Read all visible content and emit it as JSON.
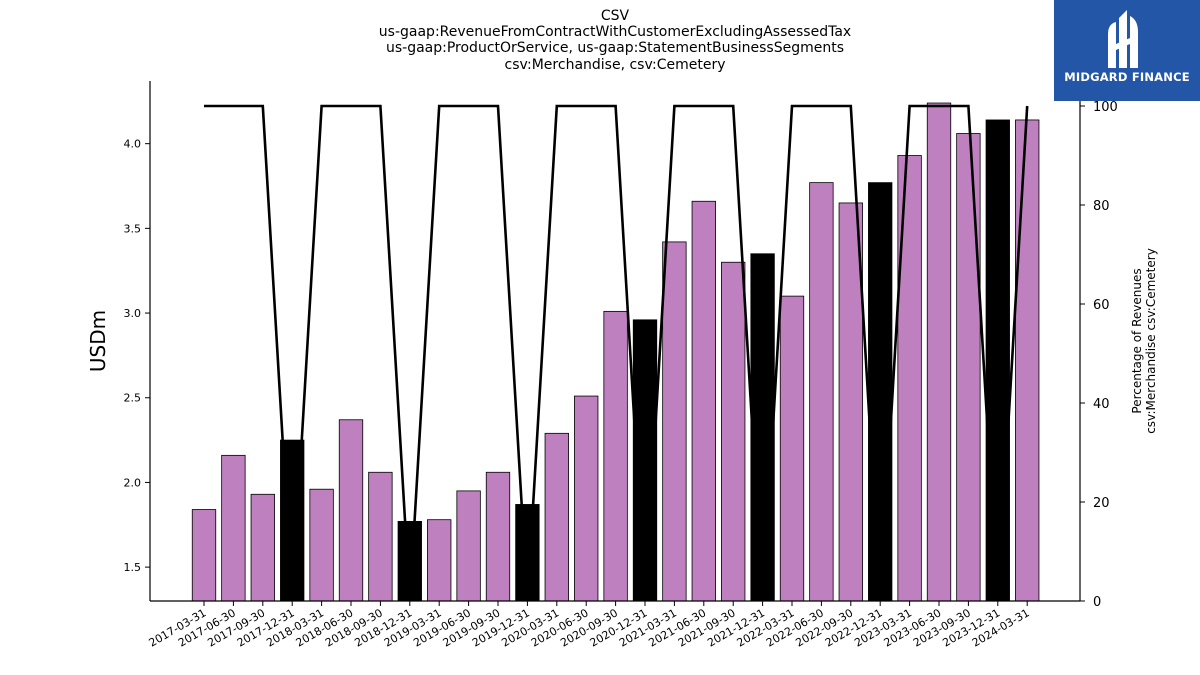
{
  "chart_data": {
    "type": "bar",
    "title_lines": [
      "CSV",
      "us-gaap:RevenueFromContractWithCustomerExcludingAssessedTax",
      "us-gaap:ProductOrService, us-gaap:StatementBusinessSegments",
      "csv:Merchandise, csv:Cemetery"
    ],
    "ylabel": "USDm",
    "ylabel_right": [
      "Percentage of Revenues",
      "csv:Merchandise csv:Cemetery"
    ],
    "ylim": [
      1.3,
      4.37
    ],
    "y_ticks": [
      1.5,
      2.0,
      2.5,
      3.0,
      3.5,
      4.0
    ],
    "y2lim": [
      0,
      100
    ],
    "y2_ticks": [
      0,
      20,
      40,
      60,
      80,
      100
    ],
    "categories": [
      "2017-03-31",
      "2017-06-30",
      "2017-09-30",
      "2017-12-31",
      "2018-03-31",
      "2018-06-30",
      "2018-09-30",
      "2018-12-31",
      "2019-03-31",
      "2019-06-30",
      "2019-09-30",
      "2019-12-31",
      "2020-03-31",
      "2020-06-30",
      "2020-09-30",
      "2020-12-31",
      "2021-03-31",
      "2021-06-30",
      "2021-09-30",
      "2021-12-31",
      "2022-03-31",
      "2022-06-30",
      "2022-09-30",
      "2022-12-31",
      "2023-03-31",
      "2023-06-30",
      "2023-09-30",
      "2023-12-31",
      "2024-03-31"
    ],
    "values": [
      1.84,
      2.16,
      1.93,
      2.25,
      1.96,
      2.37,
      2.06,
      1.77,
      1.78,
      1.95,
      2.06,
      1.87,
      2.29,
      2.51,
      3.01,
      2.96,
      3.42,
      3.66,
      3.3,
      3.35,
      3.1,
      3.77,
      3.65,
      3.77,
      3.93,
      4.24,
      4.06,
      4.14,
      4.14
    ],
    "highlighted": [
      false,
      false,
      false,
      true,
      false,
      false,
      false,
      true,
      false,
      false,
      false,
      true,
      false,
      false,
      false,
      true,
      false,
      false,
      false,
      true,
      false,
      false,
      false,
      true,
      false,
      false,
      false,
      true,
      false
    ],
    "series": [
      {
        "values": [
          100,
          100,
          100,
          0,
          100,
          100,
          100,
          0,
          100,
          100,
          100,
          0,
          100,
          100,
          100,
          0,
          100,
          100,
          100,
          0,
          100,
          100,
          100,
          0,
          100,
          100,
          100,
          0,
          100
        ]
      }
    ],
    "colors": {
      "bar": "#bf80bf",
      "bar_highlight": "#000000",
      "line": "#000000"
    },
    "grid": false
  },
  "logo": {
    "text": "MIDGARD FINANCE",
    "color": "#2456a8"
  }
}
